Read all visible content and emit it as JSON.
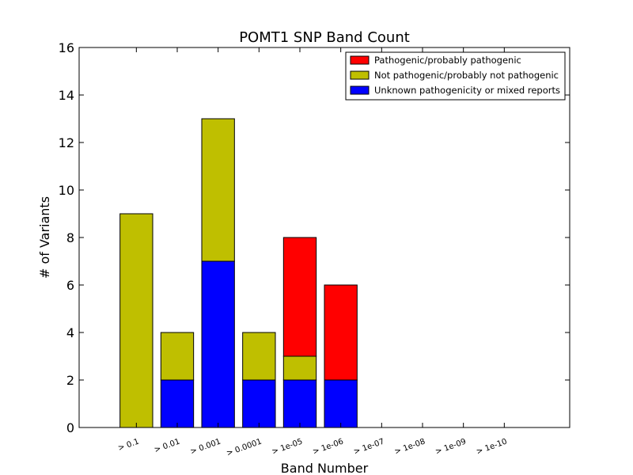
{
  "chart_data": {
    "type": "bar",
    "stacked": true,
    "title": "POMT1 SNP Band Count",
    "xlabel": "Band Number",
    "ylabel": "# of Variants",
    "categories": [
      "> 0.1",
      "> 0.01",
      "> 0.001",
      "> 0.0001",
      "> 1e-05",
      "> 1e-06",
      "> 1e-07",
      "> 1e-08",
      "> 1e-09",
      "> 1e-10"
    ],
    "ylim": [
      0,
      16
    ],
    "yticks": [
      0,
      2,
      4,
      6,
      8,
      10,
      12,
      14,
      16
    ],
    "grid": false,
    "legend_position": "top-right",
    "series": [
      {
        "name": "Unknown pathogenicity or mixed reports",
        "color": "#0000ff",
        "values": [
          0,
          2,
          7,
          2,
          2,
          2,
          0,
          0,
          0,
          0
        ]
      },
      {
        "name": "Not pathogenic/probably not pathogenic",
        "color": "#bfbf00",
        "values": [
          9,
          2,
          6,
          2,
          1,
          0,
          0,
          0,
          0,
          0
        ]
      },
      {
        "name": "Pathogenic/probably pathogenic",
        "color": "#ff0000",
        "values": [
          0,
          0,
          0,
          0,
          5,
          4,
          0,
          0,
          0,
          0
        ]
      }
    ],
    "legend_order": [
      "Pathogenic/probably pathogenic",
      "Not pathogenic/probably not pathogenic",
      "Unknown pathogenicity or mixed reports"
    ]
  }
}
